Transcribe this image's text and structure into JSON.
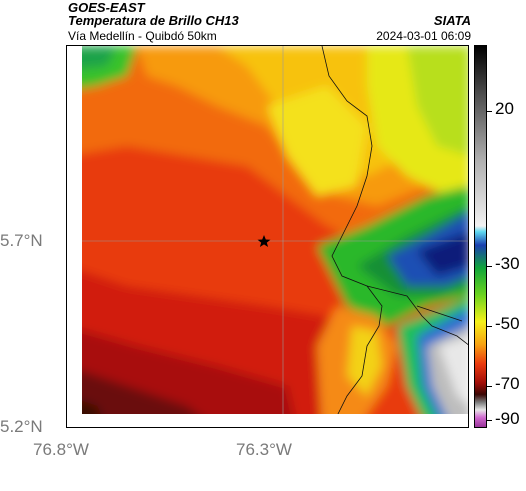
{
  "header": {
    "source": "GOES-EAST",
    "title": "Temperatura de Brillo CH13",
    "subtitle": "Vía Medellín - Quibdó 50km",
    "brand": "SIATA",
    "timestamp": "2024-03-01 06:09"
  },
  "axes": {
    "lat_labels": [
      "5.7°N",
      "5.2°N"
    ],
    "lon_labels": [
      "76.8°W",
      "76.3°W"
    ]
  },
  "colorbar": {
    "labels": [
      "20",
      "-30",
      "-50",
      "-70",
      "-90"
    ]
  },
  "marker": {
    "icon": "star-icon"
  }
}
